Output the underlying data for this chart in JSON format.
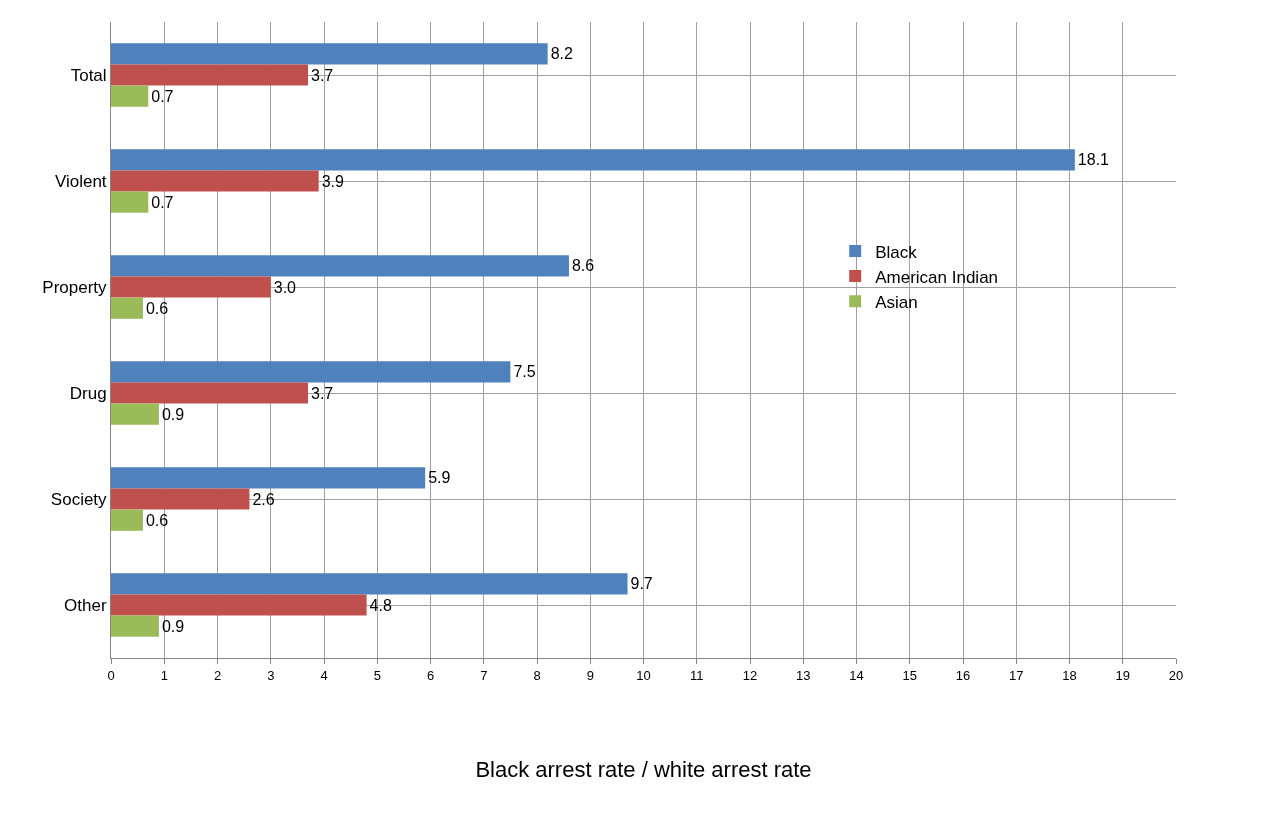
{
  "chart_data": {
    "type": "bar",
    "orientation": "horizontal",
    "xlabel": "Black arrest rate / white arrest rate",
    "categories": [
      "Total",
      "Violent",
      "Property",
      "Drug",
      "Society",
      "Other"
    ],
    "series": [
      {
        "name": "Black",
        "color": "#4f81bd",
        "values": [
          8.2,
          18.1,
          8.6,
          7.5,
          5.9,
          9.7
        ],
        "value_labels": [
          "8.2",
          "18.1",
          "8.6",
          "7.5",
          "5.9",
          "9.7"
        ]
      },
      {
        "name": "American Indian",
        "color": "#c0504d",
        "values": [
          3.7,
          3.9,
          3.0,
          3.7,
          2.6,
          4.8
        ],
        "value_labels": [
          "3.7",
          "3.9",
          "3.0",
          "3.7",
          "2.6",
          "4.8"
        ]
      },
      {
        "name": "Asian",
        "color": "#9bbb59",
        "values": [
          0.7,
          0.7,
          0.6,
          0.9,
          0.6,
          0.9
        ],
        "value_labels": [
          "0.7",
          "0.7",
          "0.6",
          "0.9",
          "0.6",
          "0.9"
        ]
      }
    ],
    "xlim": [
      0,
      20
    ],
    "xticks": [
      0,
      1,
      2,
      3,
      4,
      5,
      6,
      7,
      8,
      9,
      10,
      11,
      12,
      13,
      14,
      15,
      16,
      17,
      18,
      19,
      20
    ],
    "grid": true,
    "legend": "right"
  }
}
